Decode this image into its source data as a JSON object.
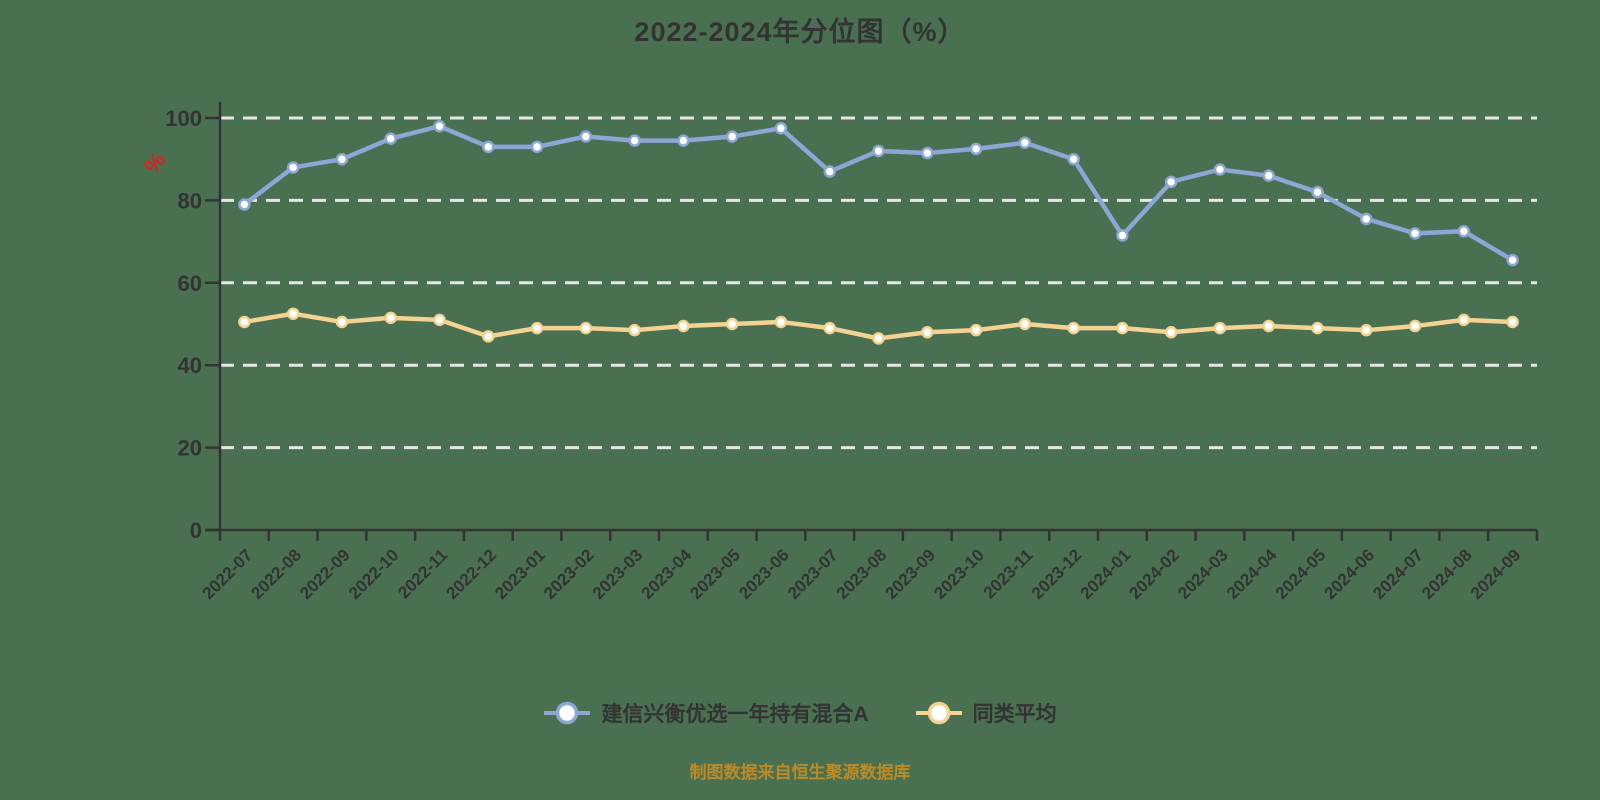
{
  "page": {
    "background_color": "#4A7052"
  },
  "header": {
    "title": "2022-2024年分位图（%）"
  },
  "footer": {
    "caption": "制图数据来自恒生聚源数据库",
    "caption_color": "#BD8B25"
  },
  "legend": {
    "items": [
      {
        "label": "建信兴衡优选一年持有混合A"
      },
      {
        "label": "同类平均"
      }
    ]
  },
  "chart_data": {
    "type": "line",
    "title": "2022-2024年分位图（%）",
    "unit_label": "%",
    "unit_label_color": "#E02020",
    "axis_color": "#333333",
    "gridline_color": "#EDEDED",
    "grid": "horizontal-dashed",
    "legend_position": "bottom",
    "ylim": [
      0,
      100
    ],
    "yticks": [
      0,
      20,
      40,
      60,
      80,
      100
    ],
    "categories": [
      "2022-07",
      "2022-08",
      "2022-09",
      "2022-10",
      "2022-11",
      "2022-12",
      "2023-01",
      "2023-02",
      "2023-03",
      "2023-04",
      "2023-05",
      "2023-06",
      "2023-07",
      "2023-08",
      "2023-09",
      "2023-10",
      "2023-11",
      "2023-12",
      "2024-01",
      "2024-02",
      "2024-03",
      "2024-04",
      "2024-05",
      "2024-06",
      "2024-07",
      "2024-08",
      "2024-09"
    ],
    "series": [
      {
        "name": "建信兴衡优选一年持有混合A",
        "color": "#8CA7D6",
        "marker": "circle-white-fill",
        "values": [
          79,
          88,
          90,
          95,
          98,
          93,
          93,
          95.5,
          94.5,
          94.5,
          95.5,
          97.5,
          87,
          92,
          91.5,
          92.5,
          94,
          90,
          71.5,
          84.5,
          87.5,
          86,
          82,
          75.5,
          72,
          72.5,
          65.5
        ]
      },
      {
        "name": "同类平均",
        "color": "#F4D392",
        "marker": "circle-white-fill",
        "values": [
          50.5,
          52.5,
          50.5,
          51.5,
          51,
          47,
          49,
          49,
          48.5,
          49.5,
          50,
          50.5,
          49,
          46.5,
          48,
          48.5,
          50,
          49,
          49,
          48,
          49,
          49.5,
          49,
          48.5,
          49.5,
          51,
          50.5
        ]
      }
    ]
  }
}
